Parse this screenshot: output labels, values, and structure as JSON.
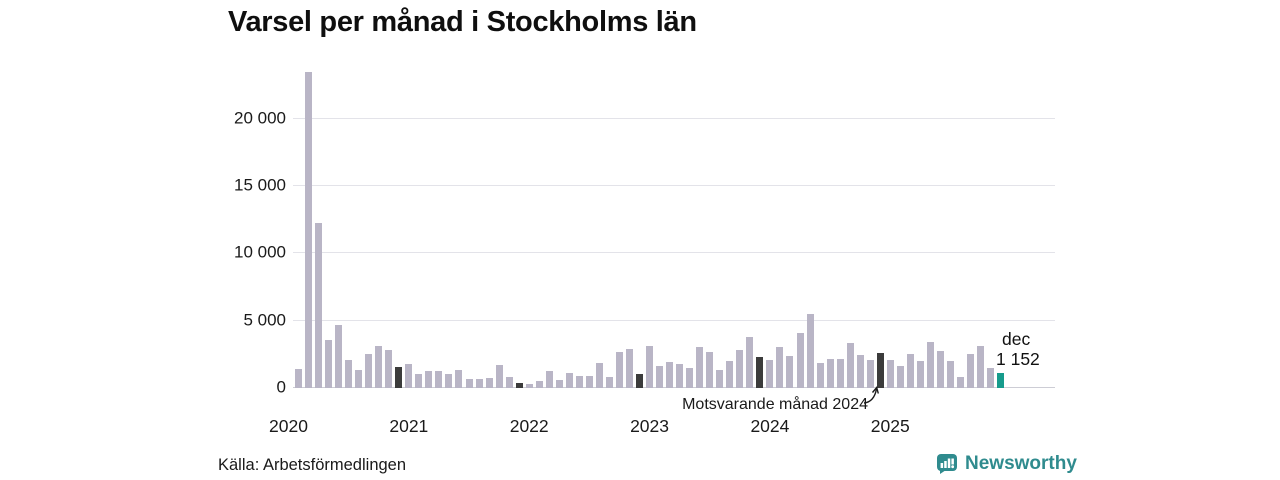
{
  "title": "Varsel per månad i Stockholms län",
  "annotation": {
    "text": "Motsvarande månad 2024"
  },
  "current_label": {
    "line1": "dec",
    "line2": "1 152"
  },
  "footer": {
    "source": "Källa: Arbetsförmedlingen",
    "brand": "Newsworthy"
  },
  "colors": {
    "bar": "#b9b5c6",
    "bar_december": "#3b3b3b",
    "bar_current": "#169b8c",
    "grid": "#e3e3e9",
    "brand": "#2f8b8e",
    "text": "#1a1a1a"
  },
  "chart_data": {
    "type": "bar",
    "title": "Varsel per månad i Stockholms län",
    "xlabel": "",
    "ylabel": "",
    "ylim": [
      0,
      24000
    ],
    "grid": "horizontal",
    "legend": "none",
    "y_ticks": [
      0,
      5000,
      10000,
      15000,
      20000
    ],
    "y_tick_labels": [
      "0",
      "5 000",
      "10 000",
      "15 000",
      "20 000"
    ],
    "x_tick_labels": [
      "2020",
      "2021",
      "2022",
      "2023",
      "2024",
      "2025"
    ],
    "x_tick_month_index_from_start": [
      -1,
      11,
      23,
      35,
      47,
      59
    ],
    "series_note": "role: december = same calendar month as highlighted month (dark bars); current = dec 2025 (teal bar, value 1 152)",
    "points": [
      {
        "month": "2020-02",
        "value": 1450
      },
      {
        "month": "2020-03",
        "value": 23500
      },
      {
        "month": "2020-04",
        "value": 12250
      },
      {
        "month": "2020-05",
        "value": 3600
      },
      {
        "month": "2020-06",
        "value": 4700
      },
      {
        "month": "2020-07",
        "value": 2100
      },
      {
        "month": "2020-08",
        "value": 1350
      },
      {
        "month": "2020-09",
        "value": 2500
      },
      {
        "month": "2020-10",
        "value": 3100
      },
      {
        "month": "2020-11",
        "value": 2800
      },
      {
        "month": "2020-12",
        "value": 1550,
        "role": "december"
      },
      {
        "month": "2021-01",
        "value": 1800
      },
      {
        "month": "2021-02",
        "value": 1050
      },
      {
        "month": "2021-03",
        "value": 1250
      },
      {
        "month": "2021-04",
        "value": 1250
      },
      {
        "month": "2021-05",
        "value": 1050
      },
      {
        "month": "2021-06",
        "value": 1350
      },
      {
        "month": "2021-07",
        "value": 650
      },
      {
        "month": "2021-08",
        "value": 650
      },
      {
        "month": "2021-09",
        "value": 750
      },
      {
        "month": "2021-10",
        "value": 1700
      },
      {
        "month": "2021-11",
        "value": 800
      },
      {
        "month": "2021-12",
        "value": 400,
        "role": "december"
      },
      {
        "month": "2022-01",
        "value": 300
      },
      {
        "month": "2022-02",
        "value": 500
      },
      {
        "month": "2022-03",
        "value": 1250
      },
      {
        "month": "2022-04",
        "value": 600
      },
      {
        "month": "2022-05",
        "value": 1100
      },
      {
        "month": "2022-06",
        "value": 900
      },
      {
        "month": "2022-07",
        "value": 900
      },
      {
        "month": "2022-08",
        "value": 1850
      },
      {
        "month": "2022-09",
        "value": 800
      },
      {
        "month": "2022-10",
        "value": 2700
      },
      {
        "month": "2022-11",
        "value": 2900
      },
      {
        "month": "2022-12",
        "value": 1050,
        "role": "december"
      },
      {
        "month": "2023-01",
        "value": 3100
      },
      {
        "month": "2023-02",
        "value": 1650
      },
      {
        "month": "2023-03",
        "value": 1950
      },
      {
        "month": "2023-04",
        "value": 1800
      },
      {
        "month": "2023-05",
        "value": 1500
      },
      {
        "month": "2023-06",
        "value": 3050
      },
      {
        "month": "2023-07",
        "value": 2700
      },
      {
        "month": "2023-08",
        "value": 1350
      },
      {
        "month": "2023-09",
        "value": 2000
      },
      {
        "month": "2023-10",
        "value": 2800
      },
      {
        "month": "2023-11",
        "value": 3800
      },
      {
        "month": "2023-12",
        "value": 2300,
        "role": "december"
      },
      {
        "month": "2024-01",
        "value": 2100
      },
      {
        "month": "2024-02",
        "value": 3050
      },
      {
        "month": "2024-03",
        "value": 2400
      },
      {
        "month": "2024-04",
        "value": 4100
      },
      {
        "month": "2024-05",
        "value": 5500
      },
      {
        "month": "2024-06",
        "value": 1850
      },
      {
        "month": "2024-07",
        "value": 2150
      },
      {
        "month": "2024-08",
        "value": 2150
      },
      {
        "month": "2024-09",
        "value": 3350
      },
      {
        "month": "2024-10",
        "value": 2450
      },
      {
        "month": "2024-11",
        "value": 2100
      },
      {
        "month": "2024-12",
        "value": 2600,
        "role": "december"
      },
      {
        "month": "2025-01",
        "value": 2100
      },
      {
        "month": "2025-02",
        "value": 1650
      },
      {
        "month": "2025-03",
        "value": 2500
      },
      {
        "month": "2025-04",
        "value": 2000
      },
      {
        "month": "2025-05",
        "value": 3400
      },
      {
        "month": "2025-06",
        "value": 2750
      },
      {
        "month": "2025-07",
        "value": 2000
      },
      {
        "month": "2025-08",
        "value": 800
      },
      {
        "month": "2025-09",
        "value": 2500
      },
      {
        "month": "2025-10",
        "value": 3100
      },
      {
        "month": "2025-11",
        "value": 1500
      },
      {
        "month": "2025-12",
        "value": 1152,
        "role": "current"
      }
    ]
  }
}
